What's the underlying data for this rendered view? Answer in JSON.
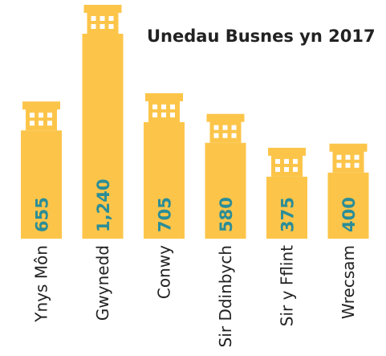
{
  "chart_data": {
    "type": "bar",
    "title": "Unedau Busnes yn 2017",
    "categories": [
      "Ynys Môn",
      "Gwynedd",
      "Conwy",
      "Sir Ddinbych",
      "Sir y Fflint",
      "Wrecsam"
    ],
    "values": [
      655,
      1240,
      705,
      580,
      375,
      400
    ],
    "value_labels": [
      "655",
      "1,240",
      "705",
      "580",
      "375",
      "400"
    ],
    "color": "#fcc54a"
  }
}
